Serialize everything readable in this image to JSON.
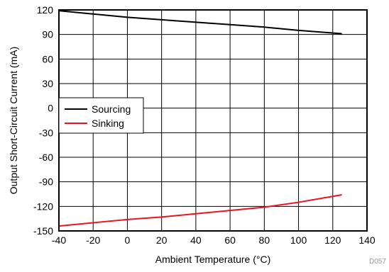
{
  "chart_data": {
    "type": "line",
    "title": "",
    "xlabel": "Ambient Temperature (°C)",
    "ylabel": "Output Short-Circuit Current (mA)",
    "xlim": [
      -40,
      140
    ],
    "ylim": [
      -150,
      120
    ],
    "xticks": [
      -40,
      -20,
      0,
      20,
      40,
      60,
      80,
      100,
      120,
      140
    ],
    "yticks": [
      -150,
      -120,
      -90,
      -60,
      -30,
      0,
      30,
      60,
      90,
      120
    ],
    "grid": true,
    "legend_position": "upper-left",
    "series": [
      {
        "name": "Sourcing",
        "color": "#000000",
        "x": [
          -40,
          -20,
          0,
          20,
          40,
          60,
          80,
          100,
          125
        ],
        "y": [
          119,
          115,
          111,
          108,
          105,
          102,
          99,
          95,
          91
        ]
      },
      {
        "name": "Sinking",
        "color": "#e8141e",
        "x": [
          -40,
          -20,
          0,
          20,
          40,
          60,
          80,
          100,
          125
        ],
        "y": [
          -144,
          -140,
          -136,
          -133,
          -129,
          -125,
          -121,
          -115,
          -106
        ]
      }
    ],
    "annotation": "D057"
  }
}
